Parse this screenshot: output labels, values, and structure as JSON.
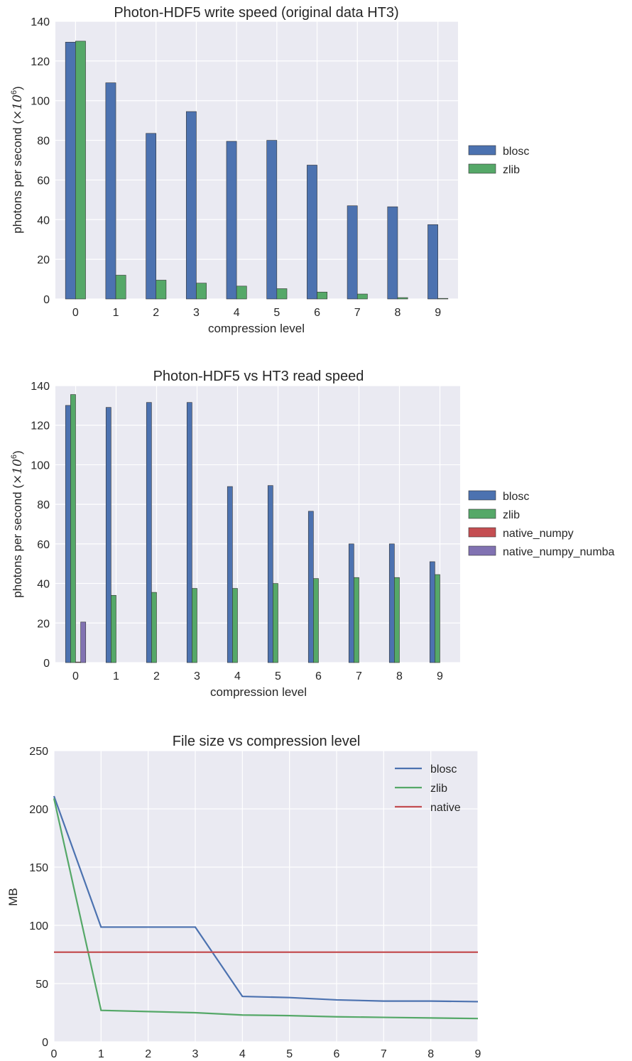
{
  "chart_data": [
    {
      "type": "bar",
      "title": "Photon-HDF5 write speed (original data HT3)",
      "xlabel": "compression level",
      "ylabel": "photons per second (",
      "ylabel_factor": "×10",
      "ylabel_exp": "6",
      "ylabel_close": ")",
      "categories": [
        "0",
        "1",
        "2",
        "3",
        "4",
        "5",
        "6",
        "7",
        "8",
        "9"
      ],
      "ylim": [
        0,
        140
      ],
      "yticks": [
        "0",
        "20",
        "40",
        "60",
        "80",
        "100",
        "120",
        "140"
      ],
      "grid": true,
      "legend_position": "right-outside",
      "series": [
        {
          "name": "blosc",
          "color": "#4c72b0",
          "values": [
            129.5,
            109,
            83.5,
            94.5,
            79.5,
            80,
            67.5,
            47,
            46.5,
            37.5
          ]
        },
        {
          "name": "zlib",
          "color": "#55a868",
          "values": [
            130,
            12,
            9.5,
            8,
            6.5,
            5.2,
            3.5,
            2.5,
            0.7,
            0.3
          ]
        }
      ]
    },
    {
      "type": "bar",
      "title": "Photon-HDF5 vs HT3 read speed",
      "xlabel": "compression level",
      "ylabel": "photons per second (",
      "ylabel_factor": "×10",
      "ylabel_exp": "6",
      "ylabel_close": ")",
      "categories": [
        "0",
        "1",
        "2",
        "3",
        "4",
        "5",
        "6",
        "7",
        "8",
        "9"
      ],
      "ylim": [
        0,
        140
      ],
      "yticks": [
        "0",
        "20",
        "40",
        "60",
        "80",
        "100",
        "120",
        "140"
      ],
      "grid": true,
      "legend_position": "right-outside",
      "series": [
        {
          "name": "blosc",
          "color": "#4c72b0",
          "values": [
            130,
            129,
            131.5,
            131.5,
            89,
            89.5,
            76.5,
            60,
            60,
            51
          ]
        },
        {
          "name": "zlib",
          "color": "#55a868",
          "values": [
            135.5,
            34,
            35.5,
            37.5,
            37.5,
            40,
            42.5,
            43,
            43,
            44.5
          ]
        },
        {
          "name": "native_numpy",
          "color": "#c44e52",
          "values": [
            0.3,
            null,
            null,
            null,
            null,
            null,
            null,
            null,
            null,
            null
          ]
        },
        {
          "name": "native_numpy_numba",
          "color": "#8172b2",
          "values": [
            20.5,
            null,
            null,
            null,
            null,
            null,
            null,
            null,
            null,
            null
          ]
        }
      ]
    },
    {
      "type": "line",
      "title": "File size vs compression level",
      "xlabel": "",
      "ylabel": "MB",
      "x": [
        0,
        1,
        2,
        3,
        4,
        5,
        6,
        7,
        8,
        9
      ],
      "xlim": [
        0,
        9
      ],
      "ylim": [
        0,
        250
      ],
      "xticks": [
        "0",
        "1",
        "2",
        "3",
        "4",
        "5",
        "6",
        "7",
        "8",
        "9"
      ],
      "yticks": [
        "0",
        "50",
        "100",
        "150",
        "200",
        "250"
      ],
      "grid": true,
      "legend_position": "upper-right",
      "series": [
        {
          "name": "blosc",
          "color": "#4c72b0",
          "values": [
            211,
            98.5,
            98.5,
            98.5,
            39,
            38,
            36,
            35,
            35,
            34.5
          ]
        },
        {
          "name": "zlib",
          "color": "#55a868",
          "values": [
            209,
            27,
            26,
            25,
            23,
            22.5,
            21.5,
            21,
            20.5,
            20
          ]
        },
        {
          "name": "native",
          "color": "#c44e52",
          "values": [
            77,
            77,
            77,
            77,
            77,
            77,
            77,
            77,
            77,
            77
          ]
        }
      ]
    }
  ]
}
